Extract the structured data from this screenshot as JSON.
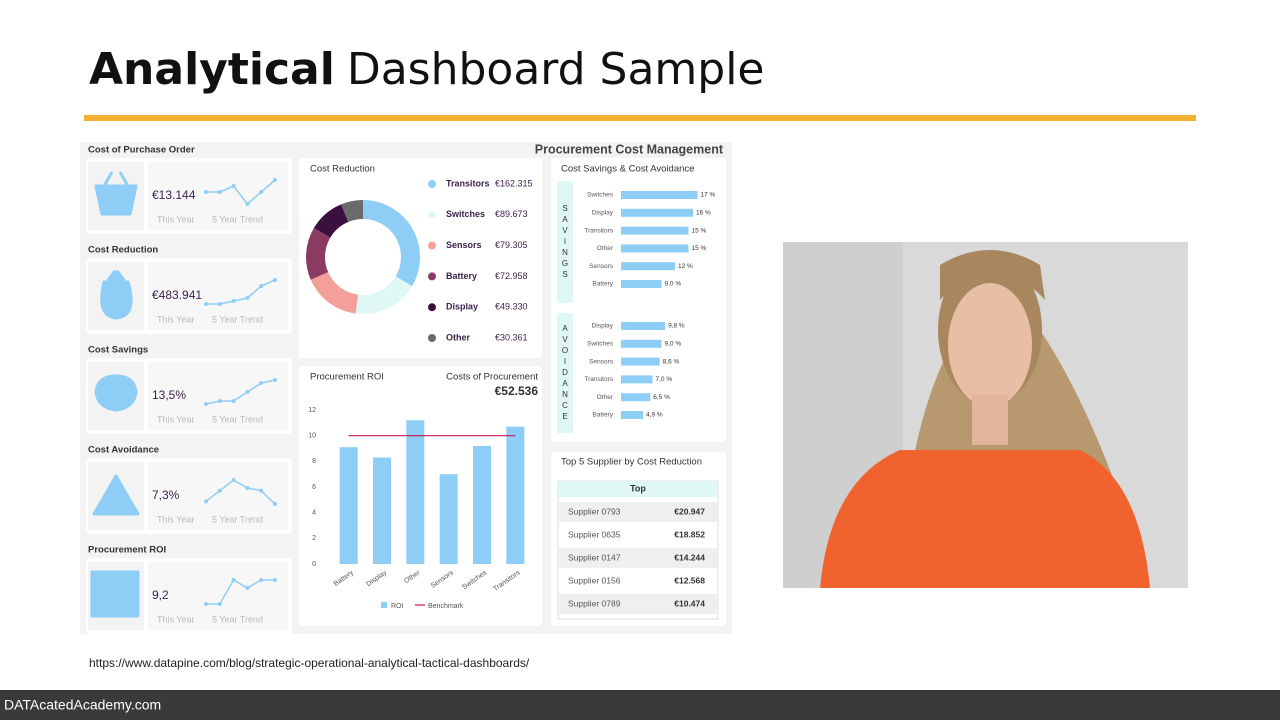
{
  "slide": {
    "title_bold": "Analytical",
    "title_rest": "Dashboard Sample",
    "source_url": "https://www.datapine.com/blog/strategic-operational-analytical-tactical-dashboards/",
    "footer": "DATAcatedAcademy.com"
  },
  "dashboard_title": "Procurement Cost Management",
  "kpis": [
    {
      "label": "Cost of Purchase Order",
      "value": "€13.144",
      "this_year": "This Year",
      "trend_label": "5 Year Trend",
      "trend": [
        3,
        3,
        4,
        1,
        3,
        5
      ]
    },
    {
      "label": "Cost Reduction",
      "value": "€483.941",
      "this_year": "This Year",
      "trend_label": "5 Year Trend",
      "trend": [
        1,
        1,
        1.5,
        2,
        4,
        5
      ]
    },
    {
      "label": "Cost Savings",
      "value": "13,5%",
      "this_year": "This Year",
      "trend_label": "5 Year Trend",
      "trend": [
        1,
        1.5,
        1.5,
        3,
        4.5,
        5
      ]
    },
    {
      "label": "Cost Avoidance",
      "value": "7,3%",
      "this_year": "This Year",
      "trend_label": "5 Year Trend",
      "trend": [
        1,
        3,
        5,
        3.5,
        3,
        0.5
      ]
    },
    {
      "label": "Procurement ROI",
      "value": "9,2",
      "this_year": "This Year",
      "trend_label": "5 Year Trend",
      "trend": [
        1,
        1,
        4,
        3,
        4,
        4
      ]
    }
  ],
  "chart_data": [
    {
      "type": "pie",
      "title": "Cost Reduction",
      "categories": [
        "Transitors",
        "Switches",
        "Sensors",
        "Battery",
        "Display",
        "Other"
      ],
      "values": [
        162315,
        89673,
        79305,
        72958,
        49330,
        30361
      ],
      "value_labels": [
        "€162.315",
        "€89.673",
        "€79.305",
        "€72.958",
        "€49.330",
        "€30.361"
      ],
      "colors": [
        "#8ecdf5",
        "#dff8f5",
        "#f4a09a",
        "#8b3a62",
        "#3b0f3e",
        "#6b6b6b"
      ]
    },
    {
      "type": "bar",
      "title": "Procurement ROI",
      "kpi_label": "Costs of Procurement",
      "kpi_value": "€52.536",
      "categories": [
        "Battery",
        "Display",
        "Other",
        "Sensors",
        "Switches",
        "Transitors"
      ],
      "series": [
        {
          "name": "ROI",
          "color": "#8ecdf5",
          "values": [
            9.1,
            8.3,
            11.2,
            7.0,
            9.2,
            10.7
          ]
        },
        {
          "name": "Benchmark",
          "color": "#c2185b",
          "values": [
            10,
            10,
            10,
            10,
            10,
            10
          ]
        }
      ],
      "ylim": [
        0,
        12
      ],
      "yticks": [
        0,
        2,
        4,
        6,
        8,
        10,
        12
      ],
      "grid": false
    },
    {
      "type": "hbar",
      "title": "Cost Savings & Cost Avoidance",
      "group_label": "SAVINGS",
      "categories": [
        "Switches",
        "Display",
        "Transitors",
        "Other",
        "Sensors",
        "Battery"
      ],
      "values": [
        17,
        16,
        15,
        15,
        12,
        9.0
      ],
      "value_labels": [
        "17 %",
        "16 %",
        "15 %",
        "15 %",
        "12 %",
        "9,0 %"
      ],
      "color": "#8ecdf5",
      "xlim": [
        0,
        20
      ]
    },
    {
      "type": "hbar",
      "group_label": "AVOIDANCE",
      "categories": [
        "Display",
        "Switches",
        "Sensors",
        "Transitors",
        "Other",
        "Battery"
      ],
      "values": [
        9.8,
        9.0,
        8.6,
        7.0,
        6.5,
        4.9
      ],
      "value_labels": [
        "9,8 %",
        "9,0 %",
        "8,6 %",
        "7,0 %",
        "6,5 %",
        "4,9 %"
      ],
      "color": "#8ecdf5",
      "xlim": [
        0,
        20
      ]
    }
  ],
  "supplier_table": {
    "title": "Top 5 Supplier by Cost Reduction",
    "header": "Top",
    "rows": [
      [
        "Supplier 0793",
        "€20.947"
      ],
      [
        "Supplier 0635",
        "€18.852"
      ],
      [
        "Supplier 0147",
        "€14.244"
      ],
      [
        "Supplier 0156",
        "€12.568"
      ],
      [
        "Supplier 0789",
        "€10.474"
      ]
    ]
  }
}
